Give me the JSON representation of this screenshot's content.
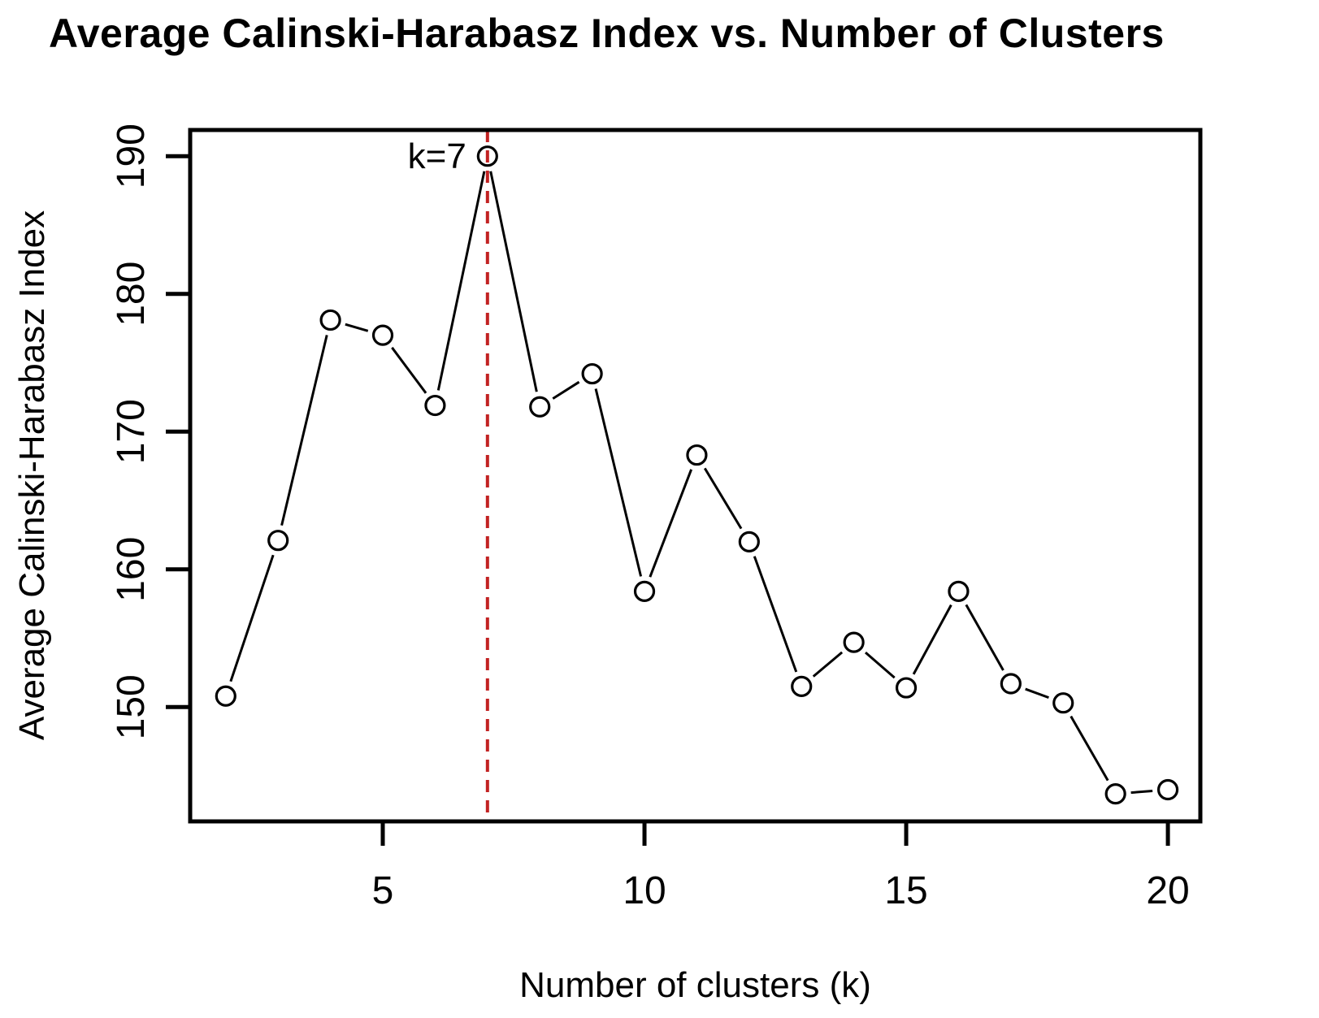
{
  "figure": {
    "background": "#ffffff"
  },
  "chart_data": {
    "type": "line",
    "title": "Average Calinski-Harabasz Index vs. Number of Clusters",
    "xlabel": "Number of clusters (k)",
    "ylabel": "Average Calinski-Harabasz Index",
    "x": [
      2,
      3,
      4,
      5,
      6,
      7,
      8,
      9,
      10,
      11,
      12,
      13,
      14,
      15,
      16,
      17,
      18,
      19,
      20
    ],
    "y": [
      150.8,
      162.1,
      178.1,
      177.0,
      171.9,
      190.0,
      171.8,
      174.2,
      158.4,
      168.3,
      162.0,
      151.5,
      154.7,
      151.4,
      158.4,
      151.7,
      150.3,
      143.7,
      144.0
    ],
    "x_ticks": [
      5,
      10,
      15,
      20
    ],
    "y_ticks": [
      150,
      160,
      170,
      180,
      190
    ],
    "xlim": [
      1.32,
      20.62
    ],
    "ylim": [
      141.7,
      191.9
    ],
    "grid": false,
    "legend": null,
    "marker": "open-circle",
    "line_style": "solid-segments-with-marker-gaps",
    "colors": {
      "series": "#000000",
      "axis": "#000000",
      "text": "#000000",
      "vline": "#c22222",
      "marker_fill": "none"
    },
    "vline": {
      "x": 7,
      "style": "dashed",
      "color": "#c22222",
      "label": "k=7"
    }
  }
}
